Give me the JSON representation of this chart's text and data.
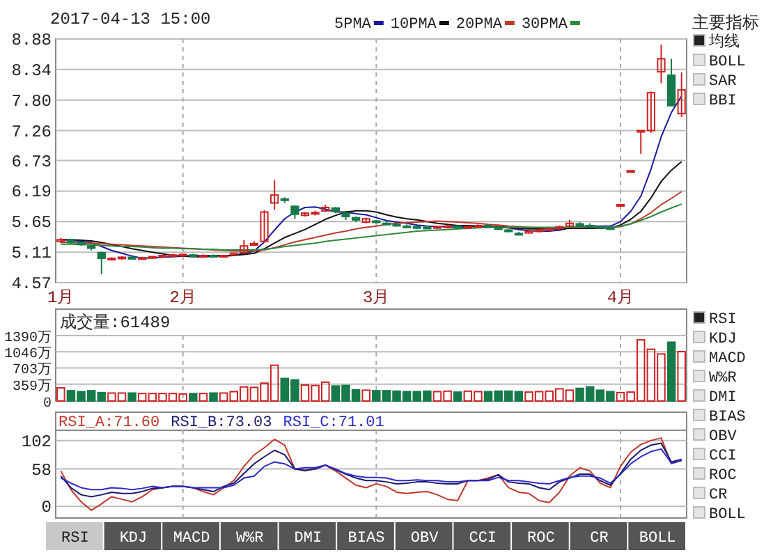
{
  "chart_data": [
    {
      "type": "candlestick",
      "title": "2017-04-13 15:00",
      "categories": [
        "1月",
        null,
        null,
        null,
        null,
        null,
        null,
        null,
        null,
        null,
        null,
        null,
        "2月",
        null,
        null,
        null,
        null,
        null,
        null,
        null,
        null,
        null,
        null,
        null,
        null,
        null,
        null,
        null,
        null,
        null,
        null,
        "3月",
        null,
        null,
        null,
        null,
        null,
        null,
        null,
        null,
        null,
        null,
        null,
        null,
        null,
        null,
        null,
        null,
        null,
        null,
        null,
        null,
        null,
        null,
        null,
        "4月",
        null,
        null,
        null,
        null,
        null,
        null
      ],
      "ohlc": [
        [
          5.3,
          5.36,
          5.27,
          5.33
        ],
        [
          5.33,
          5.34,
          5.26,
          5.28
        ],
        [
          5.28,
          5.3,
          5.22,
          5.25
        ],
        [
          5.22,
          5.24,
          5.14,
          5.18
        ],
        [
          5.1,
          5.12,
          4.72,
          5.0
        ],
        [
          4.98,
          5.02,
          4.96,
          5.0
        ],
        [
          5.0,
          5.04,
          4.98,
          5.02
        ],
        [
          5.02,
          5.03,
          4.98,
          4.99
        ],
        [
          5.0,
          5.03,
          4.99,
          5.01
        ],
        [
          5.02,
          5.04,
          5.0,
          5.03
        ],
        [
          5.04,
          5.06,
          5.02,
          5.05
        ],
        [
          5.05,
          5.08,
          5.03,
          5.06
        ],
        [
          5.06,
          5.08,
          5.03,
          5.07
        ],
        [
          5.06,
          5.08,
          5.02,
          5.04
        ],
        [
          5.04,
          5.07,
          5.01,
          5.05
        ],
        [
          5.05,
          5.07,
          5.02,
          5.03
        ],
        [
          5.03,
          5.06,
          5.01,
          5.05
        ],
        [
          5.06,
          5.1,
          5.04,
          5.09
        ],
        [
          5.1,
          5.32,
          5.08,
          5.22
        ],
        [
          5.24,
          5.3,
          5.22,
          5.26
        ],
        [
          5.3,
          5.85,
          5.28,
          5.82
        ],
        [
          5.98,
          6.38,
          5.86,
          6.12
        ],
        [
          6.05,
          6.08,
          5.98,
          6.04
        ],
        [
          5.92,
          5.94,
          5.7,
          5.78
        ],
        [
          5.76,
          5.82,
          5.74,
          5.8
        ],
        [
          5.8,
          5.84,
          5.76,
          5.81
        ],
        [
          5.84,
          5.95,
          5.82,
          5.9
        ],
        [
          5.89,
          5.91,
          5.8,
          5.83
        ],
        [
          5.8,
          5.82,
          5.68,
          5.74
        ],
        [
          5.72,
          5.74,
          5.64,
          5.68
        ],
        [
          5.64,
          5.72,
          5.62,
          5.7
        ],
        [
          5.66,
          5.68,
          5.62,
          5.64
        ],
        [
          5.62,
          5.65,
          5.59,
          5.61
        ],
        [
          5.6,
          5.62,
          5.56,
          5.58
        ],
        [
          5.57,
          5.6,
          5.54,
          5.56
        ],
        [
          5.56,
          5.58,
          5.52,
          5.55
        ],
        [
          5.55,
          5.58,
          5.53,
          5.54
        ],
        [
          5.54,
          5.57,
          5.52,
          5.56
        ],
        [
          5.56,
          5.59,
          5.54,
          5.57
        ],
        [
          5.57,
          5.59,
          5.53,
          5.55
        ],
        [
          5.55,
          5.58,
          5.53,
          5.56
        ],
        [
          5.56,
          5.6,
          5.55,
          5.58
        ],
        [
          5.58,
          5.6,
          5.54,
          5.55
        ],
        [
          5.54,
          5.56,
          5.5,
          5.52
        ],
        [
          5.5,
          5.52,
          5.46,
          5.48
        ],
        [
          5.44,
          5.47,
          5.41,
          5.43
        ],
        [
          5.45,
          5.5,
          5.44,
          5.48
        ],
        [
          5.48,
          5.52,
          5.46,
          5.5
        ],
        [
          5.5,
          5.53,
          5.48,
          5.52
        ],
        [
          5.53,
          5.58,
          5.51,
          5.56
        ],
        [
          5.57,
          5.68,
          5.55,
          5.62
        ],
        [
          5.61,
          5.64,
          5.57,
          5.58
        ],
        [
          5.58,
          5.62,
          5.55,
          5.57
        ],
        [
          5.56,
          5.58,
          5.52,
          5.54
        ],
        [
          5.54,
          5.56,
          5.5,
          5.52
        ],
        [
          5.95,
          5.95,
          5.95,
          5.95
        ],
        [
          6.55,
          6.55,
          6.55,
          6.55
        ],
        [
          7.26,
          7.26,
          6.85,
          7.26
        ],
        [
          7.26,
          7.95,
          7.22,
          7.93
        ],
        [
          8.3,
          8.78,
          8.1,
          8.53
        ],
        [
          8.24,
          8.53,
          7.7,
          7.7
        ],
        [
          7.56,
          8.29,
          7.5,
          7.98
        ]
      ],
      "colors": [
        "#cc2222",
        "#177a4a",
        "#177a4a",
        "#177a4a",
        "#177a4a",
        "#cc2222",
        "#cc2222",
        "#177a4a",
        "#cc2222",
        "#cc2222",
        "#cc2222",
        "#cc2222",
        "#cc2222",
        "#177a4a",
        "#cc2222",
        "#177a4a",
        "#cc2222",
        "#cc2222",
        "#cc2222",
        "#cc2222",
        "#cc2222",
        "#cc2222",
        "#177a4a",
        "#177a4a",
        "#cc2222",
        "#cc2222",
        "#cc2222",
        "#177a4a",
        "#177a4a",
        "#177a4a",
        "#cc2222",
        "#177a4a",
        "#177a4a",
        "#177a4a",
        "#177a4a",
        "#177a4a",
        "#177a4a",
        "#cc2222",
        "#cc2222",
        "#177a4a",
        "#cc2222",
        "#cc2222",
        "#177a4a",
        "#177a4a",
        "#177a4a",
        "#177a4a",
        "#cc2222",
        "#cc2222",
        "#cc2222",
        "#cc2222",
        "#cc2222",
        "#177a4a",
        "#177a4a",
        "#177a4a",
        "#177a4a",
        "#cc2222",
        "#cc2222",
        "#cc2222",
        "#cc2222",
        "#cc2222",
        "#177a4a",
        "#cc2222"
      ],
      "series": [
        {
          "name": "5PMA",
          "type": "line",
          "color": "#1a1aa0",
          "values": [
            5.33,
            5.32,
            5.3,
            5.28,
            5.21,
            5.14,
            5.09,
            5.04,
            5.0,
            5.01,
            5.02,
            5.03,
            5.04,
            5.05,
            5.05,
            5.05,
            5.05,
            5.05,
            5.09,
            5.13,
            5.29,
            5.5,
            5.7,
            5.82,
            5.9,
            5.91,
            5.87,
            5.82,
            5.82,
            5.79,
            5.77,
            5.72,
            5.67,
            5.64,
            5.62,
            5.59,
            5.57,
            5.56,
            5.56,
            5.55,
            5.56,
            5.56,
            5.56,
            5.55,
            5.54,
            5.51,
            5.49,
            5.48,
            5.48,
            5.5,
            5.54,
            5.56,
            5.57,
            5.57,
            5.57,
            5.65,
            5.83,
            6.1,
            6.58,
            7.15,
            7.58,
            7.87
          ]
        },
        {
          "name": "10PMA",
          "type": "line",
          "color": "#111111",
          "values": [
            5.33,
            5.33,
            5.32,
            5.31,
            5.28,
            5.24,
            5.21,
            5.17,
            5.14,
            5.11,
            5.08,
            5.05,
            5.04,
            5.03,
            5.03,
            5.04,
            5.04,
            5.05,
            5.07,
            5.09,
            5.17,
            5.27,
            5.37,
            5.44,
            5.51,
            5.6,
            5.69,
            5.76,
            5.82,
            5.84,
            5.84,
            5.82,
            5.77,
            5.73,
            5.7,
            5.68,
            5.65,
            5.62,
            5.6,
            5.58,
            5.58,
            5.57,
            5.56,
            5.56,
            5.55,
            5.53,
            5.52,
            5.52,
            5.52,
            5.52,
            5.53,
            5.53,
            5.53,
            5.53,
            5.54,
            5.59,
            5.69,
            5.83,
            6.07,
            6.36,
            6.56,
            6.71
          ]
        },
        {
          "name": "20PMA",
          "type": "line",
          "color": "#c0392b",
          "values": [
            5.28,
            5.28,
            5.27,
            5.27,
            5.26,
            5.25,
            5.24,
            5.23,
            5.22,
            5.21,
            5.2,
            5.19,
            5.18,
            5.17,
            5.16,
            5.15,
            5.14,
            5.13,
            5.13,
            5.13,
            5.15,
            5.19,
            5.24,
            5.29,
            5.33,
            5.37,
            5.41,
            5.45,
            5.48,
            5.52,
            5.55,
            5.57,
            5.6,
            5.62,
            5.63,
            5.64,
            5.65,
            5.66,
            5.65,
            5.64,
            5.63,
            5.62,
            5.6,
            5.59,
            5.57,
            5.56,
            5.55,
            5.54,
            5.54,
            5.54,
            5.55,
            5.55,
            5.55,
            5.55,
            5.54,
            5.56,
            5.61,
            5.7,
            5.81,
            5.95,
            6.06,
            6.18
          ]
        },
        {
          "name": "30PMA",
          "type": "line",
          "color": "#2e8b3e",
          "values": [
            5.25,
            5.25,
            5.24,
            5.24,
            5.23,
            5.22,
            5.21,
            5.21,
            5.2,
            5.19,
            5.18,
            5.18,
            5.17,
            5.17,
            5.16,
            5.16,
            5.15,
            5.15,
            5.15,
            5.15,
            5.16,
            5.18,
            5.21,
            5.23,
            5.25,
            5.27,
            5.3,
            5.32,
            5.34,
            5.36,
            5.38,
            5.4,
            5.42,
            5.44,
            5.46,
            5.48,
            5.49,
            5.5,
            5.51,
            5.52,
            5.53,
            5.54,
            5.55,
            5.55,
            5.55,
            5.55,
            5.55,
            5.55,
            5.55,
            5.55,
            5.55,
            5.55,
            5.55,
            5.55,
            5.55,
            5.57,
            5.61,
            5.67,
            5.74,
            5.82,
            5.89,
            5.96
          ]
        }
      ],
      "ylim": [
        4.57,
        8.88
      ],
      "yticks": [
        4.57,
        5.11,
        5.65,
        6.19,
        6.73,
        7.26,
        {
          "value": 7.8,
          "label": "7.80"
        },
        8.34,
        8.88
      ],
      "grid": "y",
      "legend": "top",
      "ref_lines": [
        {
          "axis": "x",
          "value": "2月",
          "color": "#aaaaaa",
          "line_style": "dashed"
        },
        {
          "axis": "x",
          "value": "3月",
          "color": "#aaaaaa",
          "line_style": "dashed"
        },
        {
          "axis": "x",
          "value": "4月",
          "color": "#aaaaaa",
          "line_style": "dashed"
        }
      ]
    },
    {
      "type": "bar",
      "title": "成交量:61489",
      "categories": [
        "1月",
        null,
        null,
        null,
        null,
        null,
        null,
        null,
        null,
        null,
        null,
        null,
        "2月",
        null,
        null,
        null,
        null,
        null,
        null,
        null,
        null,
        null,
        null,
        null,
        null,
        null,
        null,
        null,
        null,
        null,
        null,
        "3月",
        null,
        null,
        null,
        null,
        null,
        null,
        null,
        null,
        null,
        null,
        null,
        null,
        null,
        null,
        null,
        null,
        null,
        null,
        null,
        null,
        null,
        null,
        null,
        "4月",
        null,
        null,
        null,
        null,
        null,
        null
      ],
      "values": [
        280,
        220,
        200,
        220,
        180,
        170,
        170,
        170,
        160,
        160,
        160,
        160,
        150,
        160,
        160,
        170,
        170,
        200,
        300,
        290,
        380,
        760,
        480,
        450,
        340,
        330,
        400,
        320,
        330,
        240,
        230,
        220,
        220,
        210,
        200,
        200,
        210,
        200,
        210,
        190,
        210,
        200,
        200,
        210,
        210,
        200,
        190,
        200,
        210,
        260,
        230,
        270,
        300,
        230,
        200,
        180,
        190,
        1300,
        1100,
        1000,
        1250,
        1050
      ],
      "colors": [
        "#cc2222",
        "#177a4a",
        "#177a4a",
        "#177a4a",
        "#177a4a",
        "#cc2222",
        "#cc2222",
        "#177a4a",
        "#cc2222",
        "#cc2222",
        "#cc2222",
        "#cc2222",
        "#cc2222",
        "#177a4a",
        "#cc2222",
        "#177a4a",
        "#cc2222",
        "#cc2222",
        "#cc2222",
        "#cc2222",
        "#cc2222",
        "#cc2222",
        "#177a4a",
        "#177a4a",
        "#cc2222",
        "#cc2222",
        "#cc2222",
        "#177a4a",
        "#177a4a",
        "#177a4a",
        "#cc2222",
        "#177a4a",
        "#177a4a",
        "#177a4a",
        "#177a4a",
        "#177a4a",
        "#177a4a",
        "#cc2222",
        "#cc2222",
        "#177a4a",
        "#cc2222",
        "#cc2222",
        "#177a4a",
        "#177a4a",
        "#177a4a",
        "#177a4a",
        "#cc2222",
        "#cc2222",
        "#cc2222",
        "#cc2222",
        "#cc2222",
        "#177a4a",
        "#177a4a",
        "#177a4a",
        "#177a4a",
        "#cc2222",
        "#cc2222",
        "#cc2222",
        "#cc2222",
        "#cc2222",
        "#177a4a",
        "#cc2222"
      ],
      "ylim": [
        0,
        1390
      ],
      "yticks": [
        0,
        {
          "value": 359,
          "label": "359万"
        },
        {
          "value": 703,
          "label": "703万"
        },
        {
          "value": 1046,
          "label": "1046万"
        },
        {
          "value": 1390,
          "label": "1390万"
        }
      ],
      "grid": "y",
      "tick_labels": "y",
      "ref_lines": [
        {
          "axis": "x",
          "value": "2月",
          "color": "#aaaaaa",
          "line_style": "dashed"
        },
        {
          "axis": "x",
          "value": "3月",
          "color": "#aaaaaa",
          "line_style": "dashed"
        },
        {
          "axis": "x",
          "value": "4月",
          "color": "#aaaaaa",
          "line_style": "dashed"
        }
      ]
    },
    {
      "type": "line",
      "categories": [
        "1月",
        null,
        null,
        null,
        null,
        null,
        null,
        null,
        null,
        null,
        null,
        null,
        "2月",
        null,
        null,
        null,
        null,
        null,
        null,
        null,
        null,
        null,
        null,
        null,
        null,
        null,
        null,
        null,
        null,
        null,
        null,
        "3月",
        null,
        null,
        null,
        null,
        null,
        null,
        null,
        null,
        null,
        null,
        null,
        null,
        null,
        null,
        null,
        null,
        null,
        null,
        null,
        null,
        null,
        null,
        null,
        "4月",
        null,
        null,
        null,
        null,
        null,
        null
      ],
      "series": [
        {
          "name": "RSI_A:71.60",
          "color": "#c0392b",
          "values": [
            55,
            26,
            7,
            -6,
            4,
            15,
            11,
            7,
            15,
            26,
            29,
            31,
            31,
            29,
            23,
            18,
            29,
            40,
            62,
            80,
            91,
            104,
            95,
            58,
            55,
            58,
            64,
            55,
            44,
            33,
            29,
            35,
            31,
            22,
            20,
            22,
            23,
            18,
            11,
            9,
            40,
            40,
            44,
            49,
            29,
            22,
            20,
            9,
            6,
            22,
            47,
            60,
            55,
            36,
            29,
            62,
            84,
            96,
            102,
            106,
            66,
            71.6
          ]
        },
        {
          "name": "RSI_B:73.03",
          "color": "#1a1a70",
          "values": [
            47,
            29,
            18,
            15,
            18,
            22,
            20,
            20,
            23,
            28,
            29,
            31,
            31,
            29,
            26,
            23,
            31,
            36,
            51,
            66,
            77,
            87,
            80,
            58,
            56,
            58,
            64,
            57,
            50,
            44,
            40,
            40,
            38,
            35,
            36,
            38,
            38,
            36,
            35,
            35,
            40,
            40,
            42,
            49,
            38,
            36,
            35,
            29,
            26,
            38,
            44,
            50,
            50,
            40,
            33,
            51,
            73,
            87,
            95,
            98,
            69,
            73.03
          ]
        },
        {
          "name": "RSI_C:71.01",
          "color": "#2b2bc8",
          "values": [
            44,
            36,
            29,
            26,
            26,
            29,
            28,
            26,
            28,
            31,
            29,
            31,
            31,
            29,
            29,
            29,
            29,
            33,
            44,
            47,
            62,
            69,
            66,
            58,
            60,
            60,
            64,
            58,
            51,
            47,
            45,
            45,
            44,
            40,
            40,
            41,
            40,
            40,
            38,
            38,
            40,
            40,
            40,
            45,
            40,
            40,
            38,
            36,
            35,
            40,
            45,
            47,
            47,
            44,
            36,
            50,
            66,
            77,
            85,
            89,
            67,
            71.01
          ]
        }
      ],
      "ylim": [
        -18,
        118
      ],
      "yticks": [
        0,
        58,
        102
      ],
      "grid": "y",
      "legend": "top left",
      "tick_labels": "y",
      "ref_lines": [
        {
          "axis": "x",
          "value": "2月",
          "color": "#aaaaaa",
          "line_style": "dashed"
        },
        {
          "axis": "x",
          "value": "3月",
          "color": "#aaaaaa",
          "line_style": "dashed"
        },
        {
          "axis": "x",
          "value": "4月",
          "color": "#aaaaaa",
          "line_style": "dashed"
        }
      ]
    },
    {
      "type": "other",
      "title": "主要指标",
      "categories": [
        "均线",
        "BOLL",
        "SAR",
        "BBI"
      ],
      "colors": [
        "#222222",
        "#e4e4e4",
        "#e4e4e4",
        "#e4e4e4"
      ]
    },
    {
      "type": "other",
      "categories": [
        "RSI",
        "KDJ",
        "MACD",
        "W%R",
        "DMI",
        "BIAS",
        "OBV",
        "CCI",
        "ROC",
        "CR",
        "BOLL"
      ],
      "colors": [
        "#222222",
        "#e4e4e4",
        "#e4e4e4",
        "#e4e4e4",
        "#e4e4e4",
        "#e4e4e4",
        "#e4e4e4",
        "#e4e4e4",
        "#e4e4e4",
        "#e4e4e4",
        "#e4e4e4"
      ]
    },
    {
      "type": "other",
      "categories": [
        "RSI",
        "KDJ",
        "MACD",
        "W%R",
        "DMI",
        "BIAS",
        "OBV",
        "CCI",
        "ROC",
        "CR",
        "BOLL"
      ],
      "colors": [
        "#c8c8c8",
        "#555555",
        "#555555",
        "#555555",
        "#555555",
        "#555555",
        "#555555",
        "#555555",
        "#555555",
        "#555555",
        "#555555"
      ]
    }
  ]
}
